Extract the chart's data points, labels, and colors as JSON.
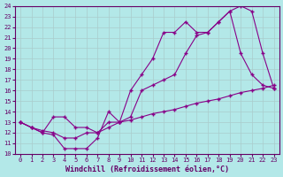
{
  "xlabel": "Windchill (Refroidissement éolien,°C)",
  "background_color": "#b3e8e8",
  "grid_color": "#aacccc",
  "line_color": "#880088",
  "xlim": [
    -0.5,
    23.5
  ],
  "ylim": [
    10,
    24
  ],
  "xticks": [
    0,
    1,
    2,
    3,
    4,
    5,
    6,
    7,
    8,
    9,
    10,
    11,
    12,
    13,
    14,
    15,
    16,
    17,
    18,
    19,
    20,
    21,
    22,
    23
  ],
  "yticks": [
    10,
    11,
    12,
    13,
    14,
    15,
    16,
    17,
    18,
    19,
    20,
    21,
    22,
    23,
    24
  ],
  "line1_x": [
    0,
    1,
    2,
    3,
    4,
    5,
    6,
    7,
    8,
    9,
    10,
    11,
    12,
    13,
    14,
    15,
    16,
    17,
    18,
    19,
    20,
    21,
    22,
    23
  ],
  "line1_y": [
    13.0,
    12.5,
    12.0,
    11.8,
    10.5,
    10.5,
    10.5,
    11.5,
    14.0,
    13.0,
    13.5,
    16.0,
    16.5,
    17.0,
    17.5,
    19.5,
    21.2,
    21.5,
    22.5,
    23.5,
    19.5,
    17.5,
    16.5,
    16.2
  ],
  "line2_x": [
    0,
    1,
    2,
    3,
    4,
    5,
    6,
    7,
    8,
    9,
    10,
    11,
    12,
    13,
    14,
    15,
    16,
    17,
    18,
    19,
    20,
    21,
    22,
    23
  ],
  "line2_y": [
    13.0,
    12.5,
    12.0,
    13.5,
    13.5,
    12.5,
    12.5,
    12.0,
    13.0,
    13.0,
    16.0,
    17.5,
    19.0,
    21.5,
    21.5,
    22.5,
    21.5,
    21.5,
    22.5,
    23.5,
    24.0,
    23.5,
    19.5,
    16.2
  ],
  "line3_x": [
    0,
    1,
    2,
    3,
    4,
    5,
    6,
    7,
    8,
    9,
    10,
    11,
    12,
    13,
    14,
    15,
    16,
    17,
    18,
    19,
    20,
    21,
    22,
    23
  ],
  "line3_y": [
    13.0,
    12.5,
    12.2,
    12.0,
    11.5,
    11.5,
    12.0,
    12.0,
    12.5,
    13.0,
    13.2,
    13.5,
    13.8,
    14.0,
    14.2,
    14.5,
    14.8,
    15.0,
    15.2,
    15.5,
    15.8,
    16.0,
    16.2,
    16.5
  ],
  "marker": "+",
  "markersize": 3,
  "linewidth": 0.8,
  "font_color": "#660066",
  "tick_fontsize": 5,
  "label_fontsize": 6
}
